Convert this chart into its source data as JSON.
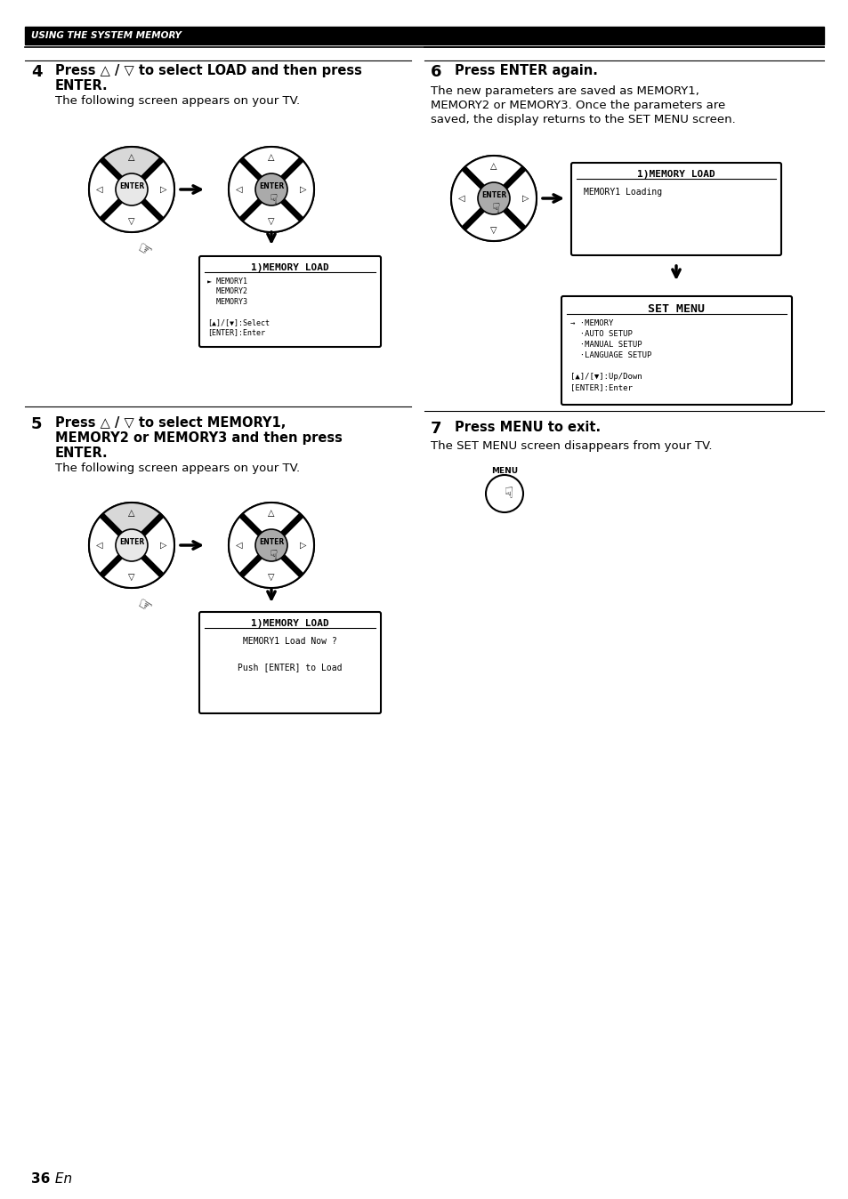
{
  "page_bg": "#ffffff",
  "header_bg": "#000000",
  "header_text": "USING THE SYSTEM MEMORY",
  "header_text_color": "#ffffff",
  "step4_num": "4",
  "step4_body": "The following screen appears on your TV.",
  "step5_num": "5",
  "step5_body": "The following screen appears on your TV.",
  "step6_num": "6",
  "step6_body1": "The new parameters are saved as MEMORY1,",
  "step6_body2": "MEMORY2 or MEMORY3. Once the parameters are",
  "step6_body3": "saved, the display returns to the SET MENU screen.",
  "step7_num": "7",
  "step7_body": "The SET MENU screen disappears from your TV.",
  "lcd1_title": "1)MEMORY LOAD",
  "lcd2_title": "1)MEMORY LOAD",
  "lcd3_title": "1)MEMORY LOAD",
  "lcd4_title": "SET MENU"
}
